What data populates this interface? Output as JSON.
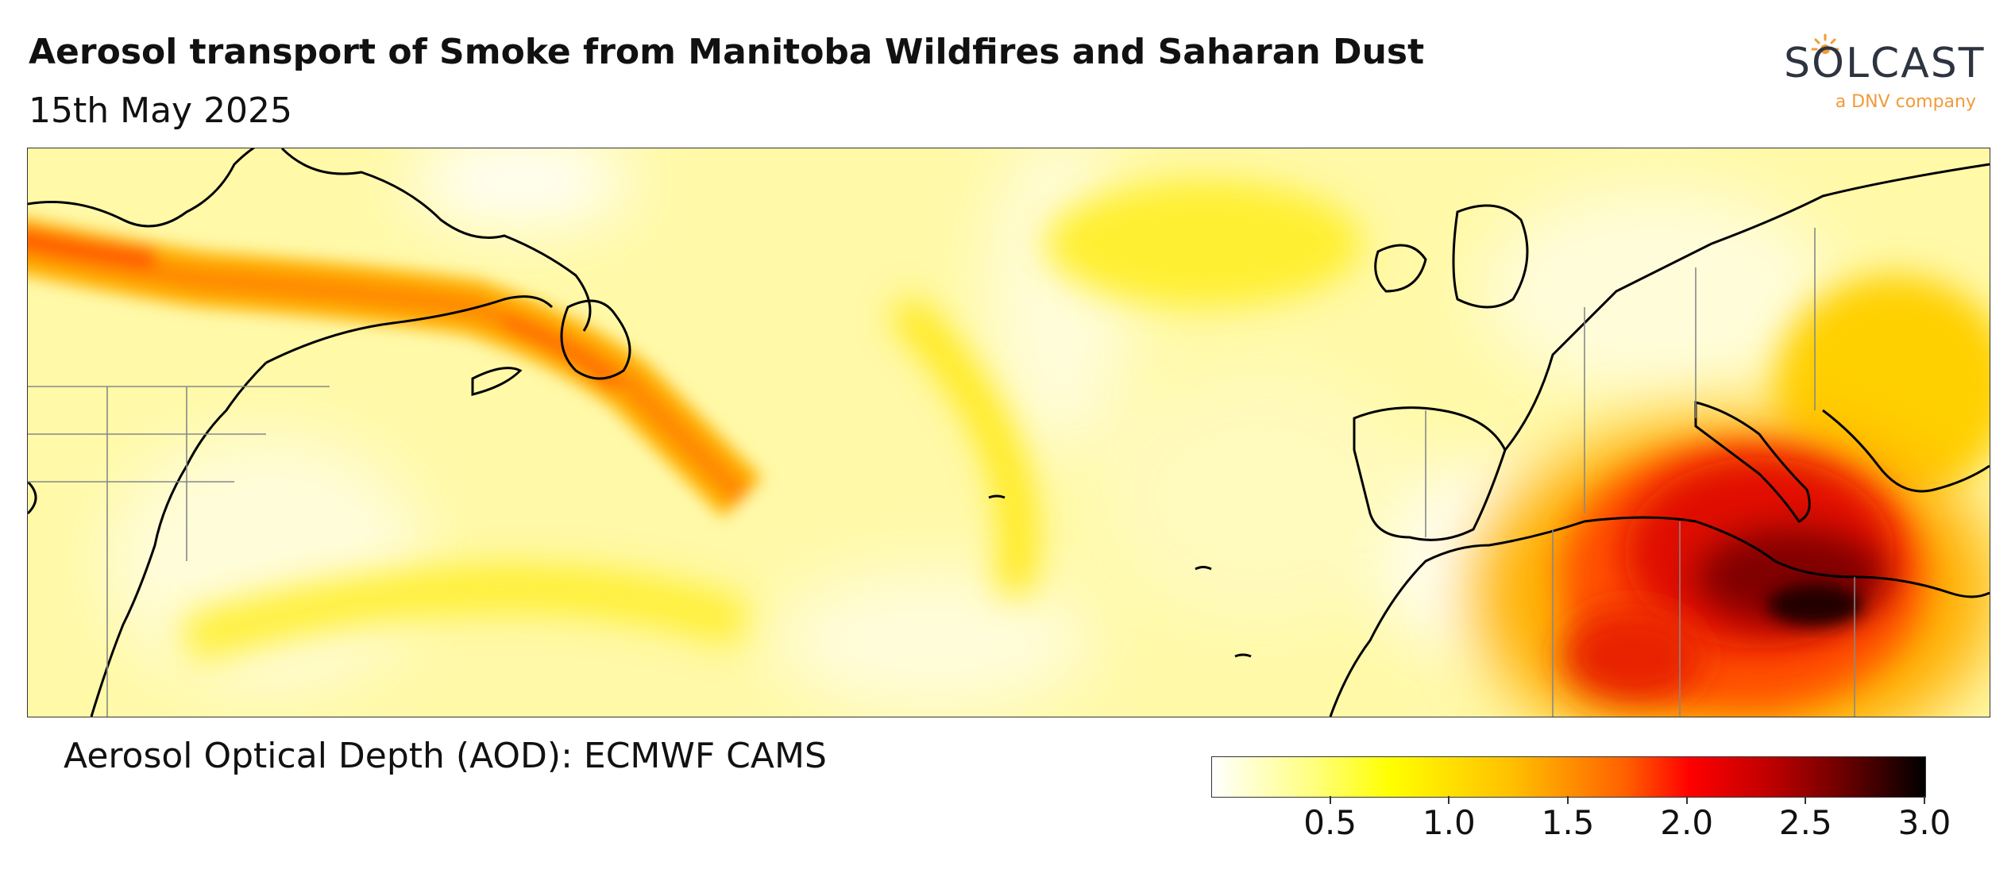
{
  "header": {
    "title": "Aerosol transport of Smoke from Manitoba Wildfires and Saharan Dust",
    "date": "15th May 2025"
  },
  "logo": {
    "name": "SOLCAST",
    "tagline": "a DNV company",
    "accent_color": "#f29a3a",
    "text_color": "#2d3440"
  },
  "map": {
    "region": "North Atlantic, eastern North America, Europe and North Africa",
    "variable_label": "Aerosol Optical Depth (AOD): ECMWF CAMS",
    "plumes": [
      {
        "name": "Manitoba wildfire smoke",
        "aod_peak": 1.6,
        "color": "#ff8000"
      },
      {
        "name": "Saharan dust",
        "aod_peak": 3.0,
        "color": "#b00000"
      }
    ]
  },
  "colorbar": {
    "ticks": [
      "0.5",
      "1.0",
      "1.5",
      "2.0",
      "2.5",
      "3.0"
    ],
    "range": [
      0.0,
      3.0
    ],
    "colors": [
      "#ffffff",
      "#ffff00",
      "#ffc000",
      "#ff6000",
      "#ff0000",
      "#700000",
      "#000000"
    ]
  }
}
